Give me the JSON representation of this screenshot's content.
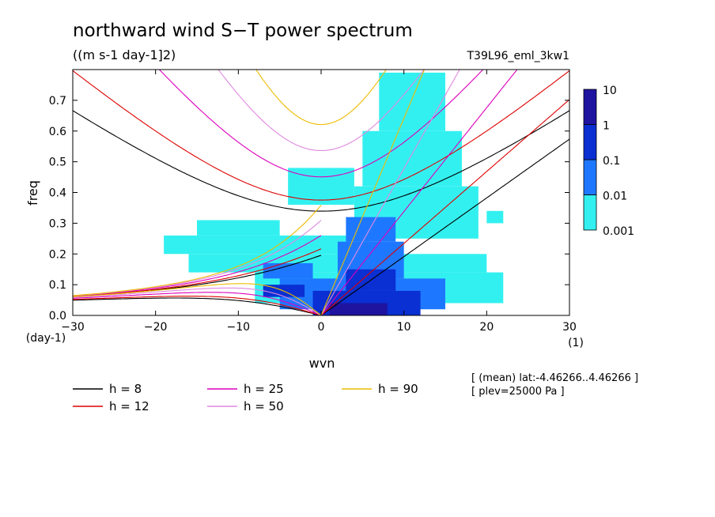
{
  "chart_data": {
    "type": "heatmap",
    "title": "northward wind S−T power spectrum",
    "subtitle": "((m s-1 day-1]2)",
    "run_label": "T39L96_eml_3kw1",
    "xlabel": "wvn",
    "ylabel": "freq",
    "x_unit": "(1)",
    "y_unit": "(day-1)",
    "xlim": [
      -30,
      30
    ],
    "ylim": [
      0,
      0.8
    ],
    "x_ticks": [
      {
        "value": -30,
        "label": "−30"
      },
      {
        "value": -20,
        "label": "−20"
      },
      {
        "value": -10,
        "label": "−10"
      },
      {
        "value": 0,
        "label": "0"
      },
      {
        "value": 10,
        "label": "10"
      },
      {
        "value": 20,
        "label": "20"
      },
      {
        "value": 30,
        "label": "30"
      }
    ],
    "y_ticks": [
      {
        "value": 0.0,
        "label": "0.0"
      },
      {
        "value": 0.1,
        "label": "0.1"
      },
      {
        "value": 0.2,
        "label": "0.2"
      },
      {
        "value": 0.3,
        "label": "0.3"
      },
      {
        "value": 0.4,
        "label": "0.4"
      },
      {
        "value": 0.5,
        "label": "0.5"
      },
      {
        "value": 0.6,
        "label": "0.6"
      },
      {
        "value": 0.7,
        "label": "0.7"
      }
    ],
    "colorbar": {
      "levels": [
        0.001,
        0.01,
        0.1,
        1,
        10
      ],
      "labels": [
        "0.001",
        "0.01",
        "0.1",
        "1",
        "10"
      ],
      "colors": [
        "#33f0f0",
        "#1e78ff",
        "#0a2fd2",
        "#1e14a0"
      ]
    },
    "notes": [
      "[ (mean) lat:-4.46266..4.46266 ]",
      "[ plev=25000 Pa ]"
    ],
    "spectrum_patches": [
      {
        "x": [
          -16,
          20
        ],
        "y": [
          0.14,
          0.2
        ],
        "level": 0
      },
      {
        "x": [
          -19,
          6
        ],
        "y": [
          0.2,
          0.26
        ],
        "level": 0
      },
      {
        "x": [
          -15,
          -5
        ],
        "y": [
          0.26,
          0.31
        ],
        "level": 0
      },
      {
        "x": [
          -8,
          22
        ],
        "y": [
          0.04,
          0.14
        ],
        "level": 0
      },
      {
        "x": [
          4,
          19
        ],
        "y": [
          0.25,
          0.42
        ],
        "level": 0
      },
      {
        "x": [
          5,
          17
        ],
        "y": [
          0.42,
          0.6
        ],
        "level": 0
      },
      {
        "x": [
          7,
          15
        ],
        "y": [
          0.6,
          0.79
        ],
        "level": 0
      },
      {
        "x": [
          -4,
          4
        ],
        "y": [
          0.36,
          0.48
        ],
        "level": 0
      },
      {
        "x": [
          20,
          22
        ],
        "y": [
          0.3,
          0.34
        ],
        "level": 0
      },
      {
        "x": [
          -5,
          15
        ],
        "y": [
          0.02,
          0.12
        ],
        "level": 1
      },
      {
        "x": [
          2,
          10
        ],
        "y": [
          0.12,
          0.24
        ],
        "level": 1
      },
      {
        "x": [
          3,
          9
        ],
        "y": [
          0.24,
          0.32
        ],
        "level": 1
      },
      {
        "x": [
          -7,
          -1
        ],
        "y": [
          0.12,
          0.17
        ],
        "level": 1
      },
      {
        "x": [
          -1,
          12
        ],
        "y": [
          0.0,
          0.08
        ],
        "level": 2
      },
      {
        "x": [
          3,
          9
        ],
        "y": [
          0.08,
          0.15
        ],
        "level": 2
      },
      {
        "x": [
          -7,
          -2
        ],
        "y": [
          0.06,
          0.1
        ],
        "level": 2
      },
      {
        "x": [
          1,
          8
        ],
        "y": [
          0.0,
          0.04
        ],
        "level": 3
      }
    ],
    "dispersion_curves": [
      {
        "name": "h =  8",
        "color": "#000000",
        "equivalent_depth_m": 8
      },
      {
        "name": "h = 12",
        "color": "#dd0000",
        "equivalent_depth_m": 12
      },
      {
        "name": "h = 25",
        "color": "#dd00bb",
        "equivalent_depth_m": 25
      },
      {
        "name": "h = 50",
        "color": "#e088e0",
        "equivalent_depth_m": 50
      },
      {
        "name": "h = 90",
        "color": "#eebb00",
        "equivalent_depth_m": 90
      }
    ]
  }
}
